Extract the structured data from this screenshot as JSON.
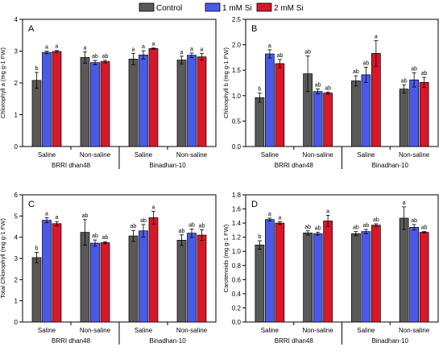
{
  "legend": {
    "placement": "top-center",
    "entries": [
      {
        "name": "Control",
        "color": "#595959"
      },
      {
        "name": "1 mM Si",
        "color": "#4a5ae8"
      },
      {
        "name": "2 mM Si",
        "color": "#d7182a"
      }
    ]
  },
  "chart_data": [
    {
      "type": "bar",
      "panel": "A",
      "ylabel": "Chlorophyll a (mg g-1 FW)",
      "ylim": [
        0,
        4
      ],
      "yticks": [
        "0",
        "1",
        "2",
        "3",
        "4"
      ],
      "categories": [
        "Saline",
        "Non-saline",
        "Saline",
        "Non-saline"
      ],
      "groups": [
        "BRRI dhan48",
        "Binadhan-10"
      ],
      "series": [
        {
          "name": "Control",
          "values": [
            2.08,
            2.8,
            2.75,
            2.72
          ],
          "errors": [
            0.25,
            0.18,
            0.18,
            0.12
          ],
          "labels": [
            "b",
            "a",
            "a",
            "a"
          ]
        },
        {
          "name": "1 mM Si",
          "values": [
            2.96,
            2.64,
            2.88,
            2.87
          ],
          "errors": [
            0.04,
            0.07,
            0.13,
            0.07
          ],
          "labels": [
            "a",
            "ab",
            "a",
            "a"
          ]
        },
        {
          "name": "2 mM Si",
          "values": [
            2.99,
            2.67,
            3.08,
            2.82
          ],
          "errors": [
            0.03,
            0.04,
            0.02,
            0.1
          ],
          "labels": [
            "a",
            "ab",
            "a",
            "a"
          ]
        }
      ]
    },
    {
      "type": "bar",
      "panel": "B",
      "ylabel": "Chlorophyll b (mg g-1 FW)",
      "ylim": [
        0,
        2.5
      ],
      "yticks": [
        "0.0",
        "0.5",
        "1.0",
        "1.5",
        "2.0",
        "2.5"
      ],
      "categories": [
        "Saline",
        "Non-saline",
        "Saline",
        "Non-saline"
      ],
      "groups": [
        "BRRI dhan48",
        "Binadhan-10"
      ],
      "series": [
        {
          "name": "Control",
          "values": [
            0.96,
            1.43,
            1.29,
            1.13
          ],
          "errors": [
            0.09,
            0.35,
            0.1,
            0.08
          ],
          "labels": [
            "b",
            "ab",
            "ab",
            "ab"
          ]
        },
        {
          "name": "1 mM Si",
          "values": [
            1.82,
            1.08,
            1.41,
            1.31
          ],
          "errors": [
            0.08,
            0.05,
            0.15,
            0.14
          ],
          "labels": [
            "a",
            "ab",
            "ab",
            "ab"
          ]
        },
        {
          "name": "2 mM Si",
          "values": [
            1.63,
            1.05,
            1.83,
            1.26
          ],
          "errors": [
            0.08,
            0.02,
            0.25,
            0.1
          ],
          "labels": [
            "ab",
            "ab",
            "a",
            "ab"
          ]
        }
      ]
    },
    {
      "type": "bar",
      "panel": "C",
      "ylabel": "Total Chlorophyll (mg g-1 FW)",
      "ylim": [
        0,
        6
      ],
      "yticks": [
        "0",
        "1",
        "2",
        "3",
        "4",
        "5",
        "6"
      ],
      "categories": [
        "Saline",
        "Non-saline",
        "Saline",
        "Non-saline"
      ],
      "groups": [
        "BRRI dhan48",
        "Binadhan-10"
      ],
      "series": [
        {
          "name": "Control",
          "values": [
            3.04,
            4.23,
            4.06,
            3.86
          ],
          "errors": [
            0.25,
            0.6,
            0.26,
            0.25
          ],
          "labels": [
            "b",
            "ab",
            "ab",
            "ab"
          ]
        },
        {
          "name": "1 mM Si",
          "values": [
            4.8,
            3.72,
            4.3,
            4.19
          ],
          "errors": [
            0.12,
            0.15,
            0.3,
            0.2
          ],
          "labels": [
            "a",
            "ab",
            "ab",
            "ab"
          ]
        },
        {
          "name": "2 mM Si",
          "values": [
            4.64,
            3.74,
            4.92,
            4.1
          ],
          "errors": [
            0.1,
            0.05,
            0.3,
            0.25
          ],
          "labels": [
            "a",
            "ab",
            "a",
            "ab"
          ]
        }
      ]
    },
    {
      "type": "bar",
      "panel": "D",
      "ylabel": "Carotenoids (mg g-1 FW)",
      "ylim": [
        0,
        1.8
      ],
      "yticks": [
        "0.0",
        "0.2",
        "0.4",
        "0.6",
        "0.8",
        "1.0",
        "1.2",
        "1.4",
        "1.6",
        "1.8"
      ],
      "categories": [
        "Saline",
        "Non-saline",
        "Saline",
        "Non-saline"
      ],
      "groups": [
        "BRRI dhan48",
        "Binadhan-10"
      ],
      "series": [
        {
          "name": "Control",
          "values": [
            1.09,
            1.26,
            1.25,
            1.47
          ],
          "errors": [
            0.06,
            0.03,
            0.03,
            0.16
          ],
          "labels": [
            "b",
            "ab",
            "ab",
            "a"
          ]
        },
        {
          "name": "1 mM Si",
          "values": [
            1.45,
            1.25,
            1.28,
            1.34
          ],
          "errors": [
            0.02,
            0.02,
            0.03,
            0.04
          ],
          "labels": [
            "a",
            "ab",
            "ab",
            "ab"
          ]
        },
        {
          "name": "2 mM Si",
          "values": [
            1.4,
            1.43,
            1.37,
            1.27
          ],
          "errors": [
            0.02,
            0.08,
            0.02,
            0.01
          ],
          "labels": [
            "a",
            "a",
            "ab",
            "ab"
          ]
        }
      ]
    }
  ]
}
